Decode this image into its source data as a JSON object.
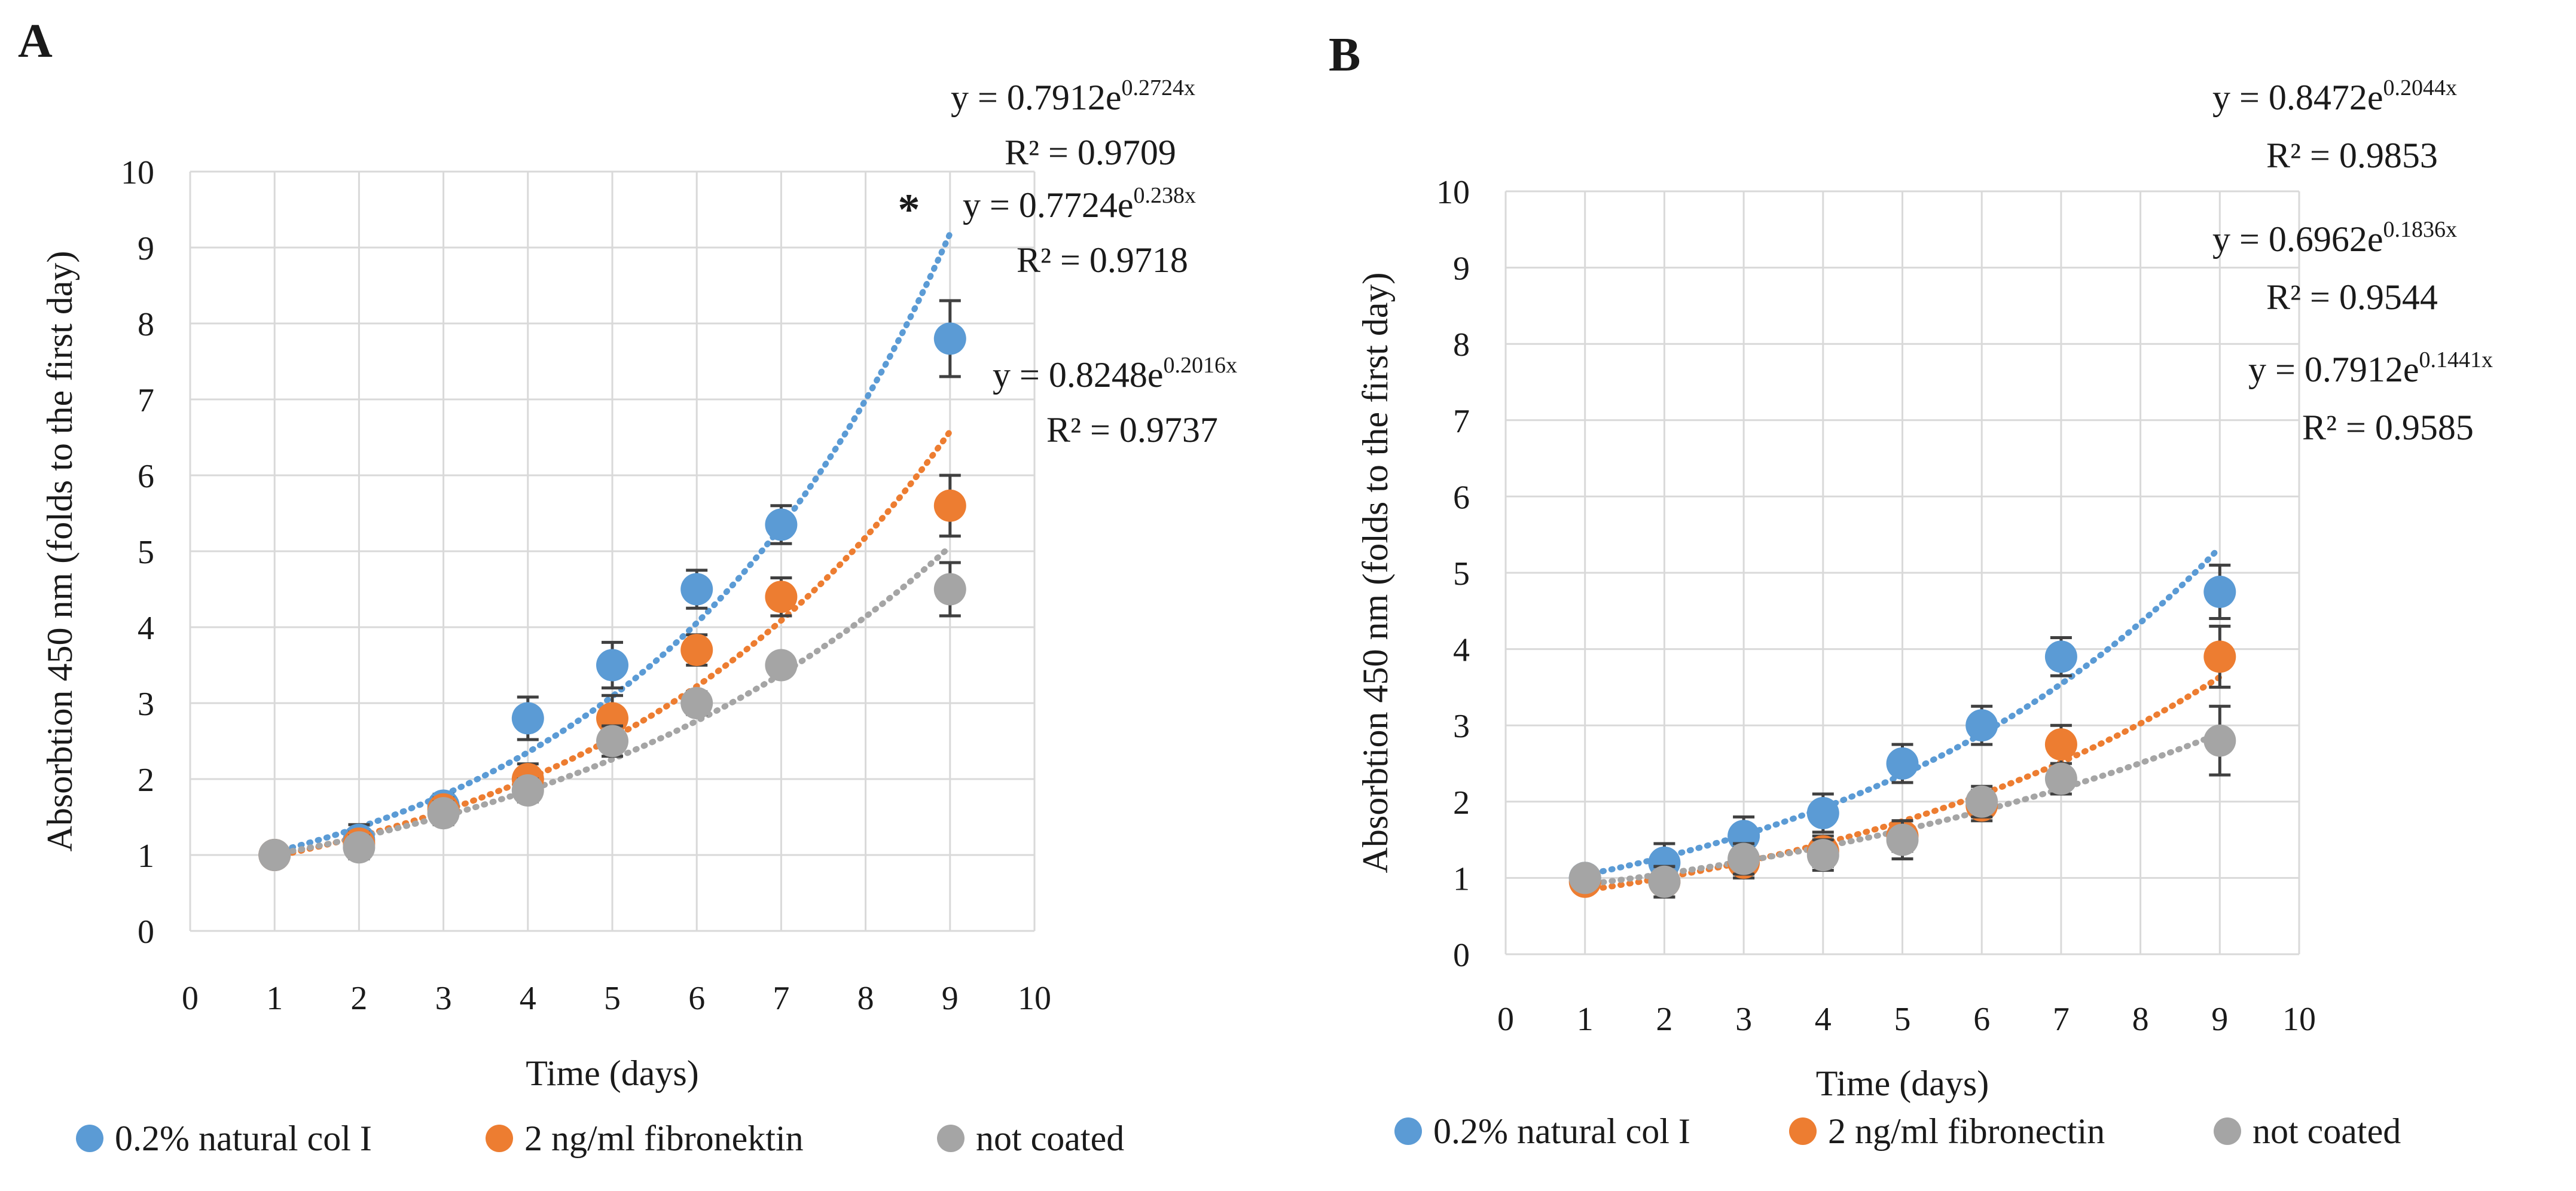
{
  "colors": {
    "blue": "#5b9bd5",
    "orange": "#ed7d31",
    "gray": "#a5a5a5",
    "grid": "#d9d9d9",
    "errorbar": "#404040"
  },
  "chart_data": [
    {
      "type": "scatter",
      "panel_label": "A",
      "xlabel": "Time (days)",
      "ylabel": "Absorbtion 450 nm (folds to the first day)",
      "xlim": [
        0,
        10
      ],
      "ylim": [
        0,
        10
      ],
      "xticks": [
        "0",
        "1",
        "2",
        "3",
        "4",
        "5",
        "6",
        "7",
        "8",
        "9",
        "10"
      ],
      "yticks": [
        "0",
        "1",
        "2",
        "3",
        "4",
        "5",
        "6",
        "7",
        "8",
        "9",
        "10"
      ],
      "grid": true,
      "annotation": "*",
      "series": [
        {
          "name": "0.2% natural col I",
          "color_key": "blue",
          "x": [
            1,
            2,
            3,
            4,
            5,
            6,
            7,
            9
          ],
          "values": [
            1.0,
            1.2,
            1.65,
            2.8,
            3.5,
            4.5,
            5.35,
            7.8
          ],
          "errors": [
            0.05,
            0.2,
            0.15,
            0.28,
            0.3,
            0.25,
            0.25,
            0.5
          ],
          "trendline": {
            "a": 0.7912,
            "b": 0.2724,
            "x_start": 1,
            "x_end": 9
          },
          "equation": {
            "base": "y = 0.7912e",
            "exponent": "0.2724x",
            "r2": "R² = 0.9709"
          }
        },
        {
          "name": "2 ng/ml fibronektin",
          "color_key": "orange",
          "x": [
            1,
            2,
            3,
            4,
            5,
            6,
            7,
            9
          ],
          "values": [
            1.0,
            1.15,
            1.6,
            2.0,
            2.8,
            3.7,
            4.4,
            5.6
          ],
          "errors": [
            0.05,
            0.15,
            0.15,
            0.2,
            0.3,
            0.2,
            0.25,
            0.4
          ],
          "trendline": {
            "a": 0.7724,
            "b": 0.238,
            "x_start": 1,
            "x_end": 9
          },
          "equation": {
            "base": "y = 0.7724e",
            "exponent": "0.238x",
            "r2": "R² = 0.9718"
          }
        },
        {
          "name": "not coated",
          "color_key": "gray",
          "x": [
            1,
            2,
            3,
            4,
            5,
            6,
            7,
            9
          ],
          "values": [
            1.0,
            1.1,
            1.55,
            1.85,
            2.5,
            3.0,
            3.5,
            4.5
          ],
          "errors": [
            0.05,
            0.15,
            0.15,
            0.15,
            0.2,
            0.15,
            0.1,
            0.35
          ],
          "trendline": {
            "a": 0.8248,
            "b": 0.2016,
            "x_start": 1,
            "x_end": 9
          },
          "equation": {
            "base": "y = 0.8248e",
            "exponent": "0.2016x",
            "r2": "R² = 0.9737"
          }
        }
      ]
    },
    {
      "type": "scatter",
      "panel_label": "B",
      "xlabel": "Time (days)",
      "ylabel": "Absorbtion 450 nm (folds to the first day)",
      "xlim": [
        0,
        10
      ],
      "ylim": [
        0,
        10
      ],
      "xticks": [
        "0",
        "1",
        "2",
        "3",
        "4",
        "5",
        "6",
        "7",
        "8",
        "9",
        "10"
      ],
      "yticks": [
        "0",
        "1",
        "2",
        "3",
        "4",
        "5",
        "6",
        "7",
        "8",
        "9",
        "10"
      ],
      "grid": true,
      "series": [
        {
          "name": "0.2% natural col I",
          "color_key": "blue",
          "x": [
            1,
            2,
            3,
            4,
            5,
            6,
            7,
            9
          ],
          "values": [
            1.0,
            1.2,
            1.55,
            1.85,
            2.5,
            3.0,
            3.9,
            4.75
          ],
          "errors": [
            0.05,
            0.25,
            0.25,
            0.25,
            0.25,
            0.25,
            0.25,
            0.35
          ],
          "trendline": {
            "a": 0.8472,
            "b": 0.2044,
            "x_start": 1,
            "x_end": 9
          },
          "equation": {
            "base": "y = 0.8472e",
            "exponent": "0.2044x",
            "r2": "R² = 0.9853"
          }
        },
        {
          "name": "2 ng/ml fibronectin",
          "color_key": "orange",
          "x": [
            1,
            2,
            3,
            4,
            5,
            6,
            7,
            9
          ],
          "values": [
            0.95,
            0.95,
            1.2,
            1.35,
            1.55,
            1.95,
            2.75,
            3.9
          ],
          "errors": [
            0.05,
            0.2,
            0.2,
            0.2,
            0.2,
            0.2,
            0.25,
            0.4
          ],
          "trendline": {
            "a": 0.6962,
            "b": 0.1836,
            "x_start": 1,
            "x_end": 9
          },
          "equation": {
            "base": "y = 0.6962e",
            "exponent": "0.1836x",
            "r2": "R² = 0.9544"
          }
        },
        {
          "name": "not coated",
          "color_key": "gray",
          "x": [
            1,
            2,
            3,
            4,
            5,
            6,
            7,
            9
          ],
          "values": [
            1.0,
            0.95,
            1.25,
            1.3,
            1.5,
            2.0,
            2.3,
            2.8
          ],
          "errors": [
            0.05,
            0.2,
            0.2,
            0.2,
            0.25,
            0.2,
            0.2,
            0.45
          ],
          "trendline": {
            "a": 0.7912,
            "b": 0.1441,
            "x_start": 1,
            "x_end": 9
          },
          "equation": {
            "base": "y = 0.7912e",
            "exponent": "0.1441x",
            "r2": "R² = 0.9585"
          }
        }
      ]
    }
  ]
}
